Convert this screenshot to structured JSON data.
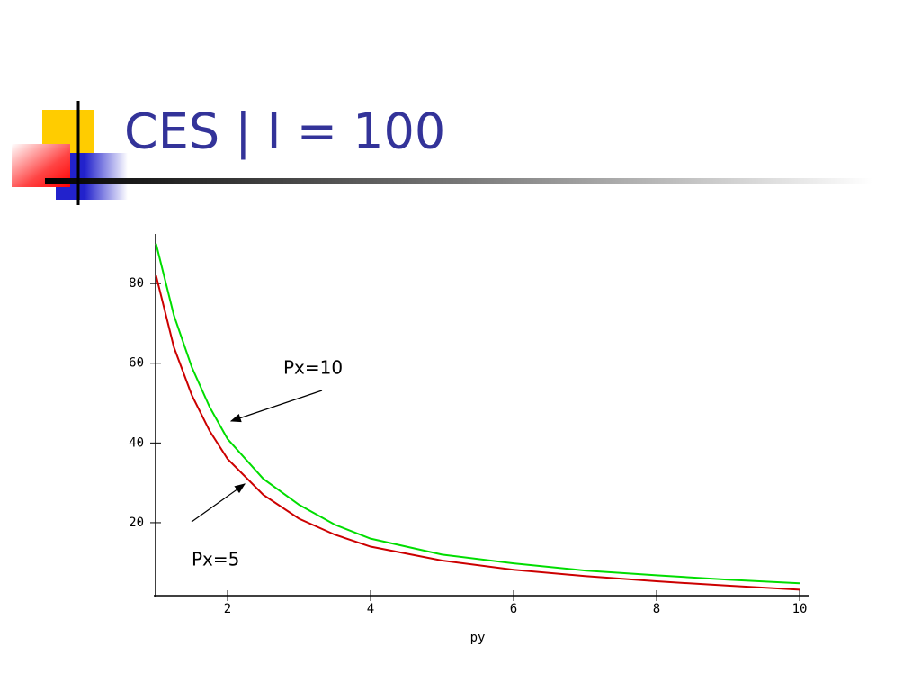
{
  "chart_data": {
    "type": "line",
    "title": "CES | I = 100",
    "xlabel": "py",
    "x": [
      1,
      1.25,
      1.5,
      1.75,
      2,
      2.5,
      3,
      3.5,
      4,
      5,
      6,
      7,
      8,
      9,
      10
    ],
    "series": [
      {
        "name": "Px=10",
        "color": "#00dd00",
        "values": [
          90,
          72,
          59,
          49,
          41,
          31,
          24.5,
          19.5,
          16,
          12,
          9.8,
          8,
          6.8,
          5.7,
          4.8
        ]
      },
      {
        "name": "Px=5",
        "color": "#cc0000",
        "values": [
          82,
          64,
          52,
          43,
          36,
          27,
          21,
          17,
          14,
          10.5,
          8.2,
          6.6,
          5.3,
          4.2,
          3.2
        ]
      }
    ],
    "xlim": [
      1,
      10
    ],
    "ylim": [
      1.7,
      92
    ],
    "xticks": [
      2,
      4,
      6,
      8,
      10
    ],
    "yticks": [
      20,
      40,
      60,
      80
    ]
  }
}
